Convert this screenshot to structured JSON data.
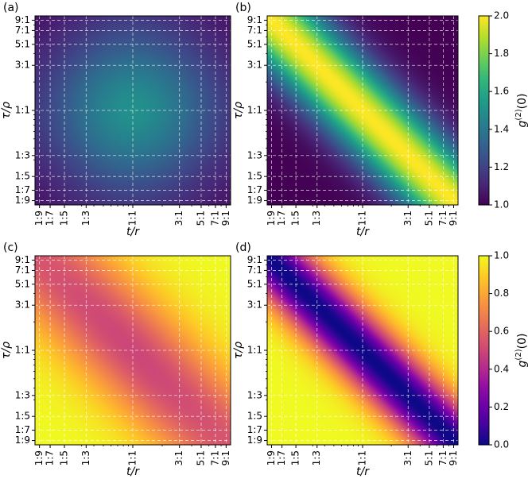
{
  "chart_data": [
    {
      "type": "heatmap",
      "panel_label": "(a)",
      "xlabel": "t/r",
      "ylabel": "τ/ρ",
      "tick_labels": [
        "1:9",
        "1:7",
        "1:5",
        "1:3",
        "1:1",
        "3:1",
        "5:1",
        "7:1",
        "9:1"
      ],
      "tick_ratios": [
        0.1111,
        0.1429,
        0.2,
        0.3333,
        1,
        3,
        5,
        7,
        9
      ],
      "axis_scale": "log",
      "grid": true,
      "grid_style": "dashed white",
      "colormap": "viridis",
      "color_range": [
        1.0,
        2.0
      ],
      "description_values": {
        "diagonal_max": 1.5,
        "corner_min": 1.0,
        "antidiagonal_corner": 1.0
      },
      "value_model": "1 + 0.5 * (4tr/(t+r)^2) * (4τρ/(τ+ρ)^2)"
    },
    {
      "type": "heatmap",
      "panel_label": "(b)",
      "xlabel": "t/r",
      "ylabel": "τ/ρ",
      "tick_labels": [
        "1:9",
        "1:7",
        "1:5",
        "1:3",
        "1:1",
        "3:1",
        "5:1",
        "7:1",
        "9:1"
      ],
      "tick_ratios": [
        0.1111,
        0.1429,
        0.2,
        0.3333,
        1,
        3,
        5,
        7,
        9
      ],
      "axis_scale": "log",
      "grid": true,
      "grid_style": "dashed white",
      "colormap": "viridis",
      "color_range": [
        1.0,
        2.0
      ],
      "description_values": {
        "antidiagonal_max": 2.0,
        "corner_min": 1.0
      },
      "value_model": "1 + (peak along t/r · τ/ρ = 1, falling off away from anti-diagonal)",
      "colorbar": {
        "label": "g(2)(0)",
        "ticks": [
          "1.0",
          "1.2",
          "1.4",
          "1.6",
          "1.8",
          "2.0"
        ],
        "min": 1.0,
        "max": 2.0
      }
    },
    {
      "type": "heatmap",
      "panel_label": "(c)",
      "xlabel": "t/r",
      "ylabel": "τ/ρ",
      "tick_labels": [
        "1:9",
        "1:7",
        "1:5",
        "1:3",
        "1:1",
        "3:1",
        "5:1",
        "7:1",
        "9:1"
      ],
      "tick_ratios": [
        0.1111,
        0.1429,
        0.2,
        0.3333,
        1,
        3,
        5,
        7,
        9
      ],
      "axis_scale": "log",
      "grid": true,
      "grid_style": "dashed white",
      "colormap": "plasma",
      "color_range": [
        0.0,
        1.0
      ],
      "description_values": {
        "antidiagonal_min": 0.5,
        "corner_max": 1.0
      }
    },
    {
      "type": "heatmap",
      "panel_label": "(d)",
      "xlabel": "t/r",
      "ylabel": "τ/ρ",
      "tick_labels": [
        "1:9",
        "1:7",
        "1:5",
        "1:3",
        "1:1",
        "3:1",
        "5:1",
        "7:1",
        "9:1"
      ],
      "tick_ratios": [
        0.1111,
        0.1429,
        0.2,
        0.3333,
        1,
        3,
        5,
        7,
        9
      ],
      "axis_scale": "log",
      "grid": true,
      "grid_style": "dashed white",
      "colormap": "plasma",
      "color_range": [
        0.0,
        1.0
      ],
      "description_values": {
        "antidiagonal_min": 0.0,
        "corner_max": 1.0
      },
      "colorbar": {
        "label": "g(2)(0)",
        "ticks": [
          "0.0",
          "0.2",
          "0.4",
          "0.6",
          "0.8",
          "1.0"
        ],
        "min": 0.0,
        "max": 1.0
      }
    }
  ]
}
